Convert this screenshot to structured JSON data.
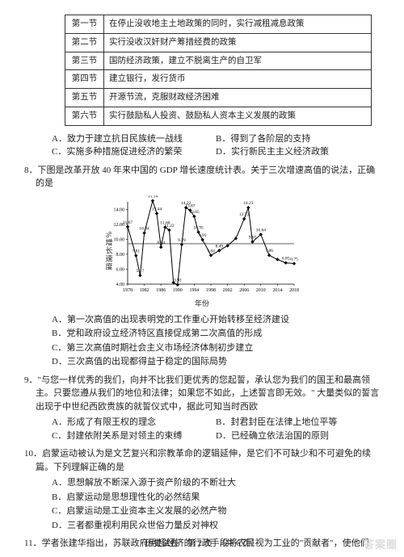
{
  "table": {
    "rows": [
      {
        "h": "第一节",
        "c": "在停止没收地主土地政策的同时，实行减租减息政策"
      },
      {
        "h": "第二节",
        "c": "实行没收汉奸财产筹措经费的政策"
      },
      {
        "h": "第三节",
        "c": "国防经济政策，建立不脱离生产的自卫军"
      },
      {
        "h": "第四节",
        "c": "建立银行，发行货币"
      },
      {
        "h": "第五节",
        "c": "开源节流，克服财政经济困难"
      },
      {
        "h": "第六节",
        "c": "实行鼓励私人投资、鼓励私人资本主义发展的政策"
      }
    ]
  },
  "q7opts": {
    "a": "A．致力于建立抗日民族统一战线",
    "b": "B．得到了各阶层的支持",
    "c": "C．实施多种措施促进经济的繁荣",
    "d": "D．实行新民主主义经济政策"
  },
  "q8": {
    "stem": "8．下图是改革开放 40 年来中国的 GDP 增长速度统计表。关于三次增速高值的说法，正确的是",
    "a": "A．第一次高值的出现表明党的工作重心开始转移至经济建设",
    "b": "B．党和政府设立经济特区直接促成第二次高值的形成",
    "c": "C．第三次高值时期社会主义市场经济体制初步建立",
    "d": "D．三次高值的出现都得益于稳定的国际局势"
  },
  "q9": {
    "stem": "9．\"与您一样优秀的我们，向并不比我们更优秀的您起誓，承认您为我们的国王和最高领主。只要您遵从我们的地位和法律；如果您不如此，上述誓言即无效。\" 大量类似的誓言出现于中世纪西欧贵族的就誓仪式中，据此可知当时西欧",
    "a": "A．形成了有限王权的理念",
    "b": "B．封君封臣在法律上地位平等",
    "c": "C．封建依附关系是对领主的束缚",
    "d": "D．已经确立依法治国的原则"
  },
  "q10": {
    "stem": "10．启蒙运动被认为是文艺复兴和宗教革命的逻辑延伸，是它们不可缺少和不可避免的续篇。下列理解正确的是",
    "a": "A．思想解放不断深入源于资产阶级的不断壮大",
    "b": "B．启蒙运动是思想理性化的必然结果",
    "c": "C．启蒙运动是工业资本主义发展的必然产物",
    "d": "D．三者都重视利用民众世俗力量反对神权"
  },
  "q11": {
    "stem": "11．学者张建华指出，苏联政府用超经济的行政手段将农民视为工业的\"贡献者\"，使他们"
  },
  "footer": "历史试卷　第 2 页　（共 6 页）",
  "watermark": "答案圈",
  "chart": {
    "ylabel": "%增长速度",
    "xlabel": "年份",
    "years": [
      1978,
      1982,
      1986,
      1990,
      1994,
      1998,
      2002,
      2006,
      2010,
      2014,
      2018
    ],
    "points": [
      {
        "x": 1978,
        "y": 11.67,
        "l": "11.67"
      },
      {
        "x": 1980,
        "y": 7.81,
        "l": "7.81"
      },
      {
        "x": 1981,
        "y": 5.17,
        "l": "5.17"
      },
      {
        "x": 1982,
        "y": 10.84,
        "l": "10.84"
      },
      {
        "x": 1984,
        "y": 15.14,
        "l": "15.14"
      },
      {
        "x": 1985,
        "y": 13.44,
        "l": "13.44"
      },
      {
        "x": 1986,
        "y": 8.94,
        "l": "8.94"
      },
      {
        "x": 1987,
        "y": 11.6,
        "l": "11.60"
      },
      {
        "x": 1988,
        "y": 11.22,
        "l": "11.22"
      },
      {
        "x": 1989,
        "y": 4.21,
        "l": ""
      },
      {
        "x": 1990,
        "y": 3.92,
        "l": "3.92"
      },
      {
        "x": 1991,
        "y": 9.29,
        "l": "9.29"
      },
      {
        "x": 1992,
        "y": 14.22,
        "l": "14.22"
      },
      {
        "x": 1993,
        "y": 13.87,
        "l": "13.87"
      },
      {
        "x": 1994,
        "y": 13.05,
        "l": "13.05"
      },
      {
        "x": 1995,
        "y": 10.95,
        "l": "10.95"
      },
      {
        "x": 1996,
        "y": 9.93,
        "l": "9.93"
      },
      {
        "x": 1998,
        "y": 7.84,
        "l": "7.84"
      },
      {
        "x": 2000,
        "y": 8.49,
        "l": "8.49"
      },
      {
        "x": 2002,
        "y": 9.13,
        "l": ""
      },
      {
        "x": 2004,
        "y": 10.11,
        "l": ""
      },
      {
        "x": 2006,
        "y": 12.72,
        "l": "12.72"
      },
      {
        "x": 2007,
        "y": 14.23,
        "l": "14.23"
      },
      {
        "x": 2008,
        "y": 9.65,
        "l": "9.65"
      },
      {
        "x": 2010,
        "y": 10.64,
        "l": "10.64"
      },
      {
        "x": 2012,
        "y": 7.86,
        "l": "7.86"
      },
      {
        "x": 2014,
        "y": 7.3,
        "l": ""
      },
      {
        "x": 2016,
        "y": 6.85,
        "l": "6.85"
      },
      {
        "x": 2018,
        "y": 6.75,
        "l": "6.75"
      }
    ],
    "yrange": [
      4,
      15
    ],
    "yticks": [
      4,
      6,
      8,
      10,
      12,
      14
    ],
    "line_color": "#000",
    "marker": "diamond",
    "bg": "#ffffff"
  }
}
